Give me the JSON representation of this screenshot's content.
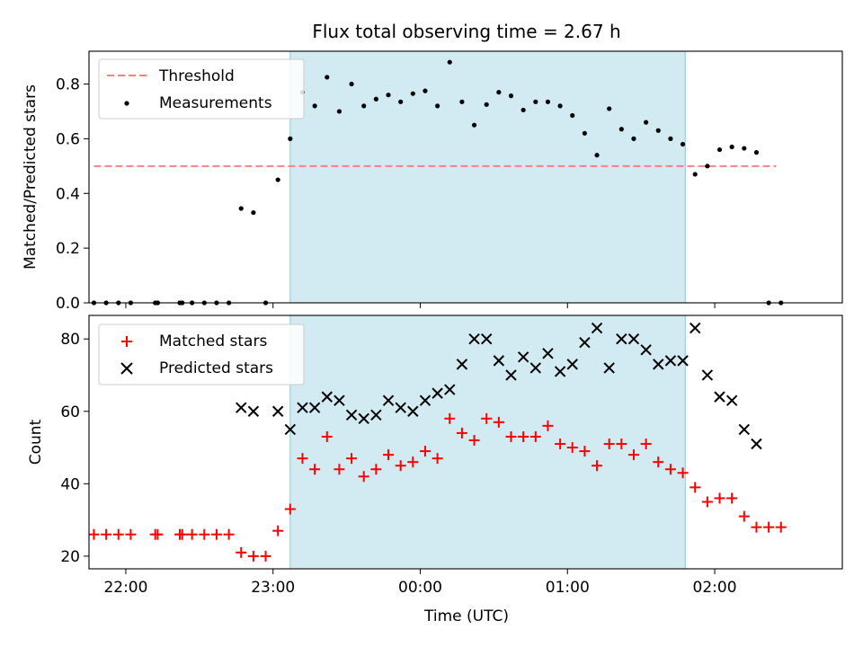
{
  "figure": {
    "title": "Flux total observing time = 2.67 h",
    "xlabel": "Time (UTC)",
    "x_ticks": [
      "22:00",
      "23:00",
      "00:00",
      "01:00",
      "02:00"
    ]
  },
  "chart_data": [
    {
      "type": "scatter",
      "title": "Flux total observing time = 2.67 h",
      "ylabel": "Matched/Predicted stars",
      "xlabel": "",
      "xlim": [
        "21:45",
        "02:52"
      ],
      "ylim": [
        0,
        0.92
      ],
      "y_ticks": [
        "0.0",
        "0.2",
        "0.4",
        "0.6",
        "0.8"
      ],
      "legend": {
        "placement": "top-left",
        "entries": [
          "Threshold",
          "Measurements"
        ]
      },
      "shaded_interval": {
        "x": [
          "23:07",
          "01:48"
        ],
        "color": "#add8e6"
      },
      "threshold": {
        "name": "Threshold",
        "value": 0.5,
        "x": [
          "21:47",
          "02:25"
        ],
        "color": "#ff7f7f",
        "style": "dashed"
      },
      "series": [
        {
          "name": "Measurements",
          "color": "#000000",
          "marker": "dot",
          "points": [
            [
              "21:47",
              0
            ],
            [
              "21:52",
              0
            ],
            [
              "21:57",
              0
            ],
            [
              "22:02",
              0
            ],
            [
              "22:12",
              0
            ],
            [
              "22:13",
              0
            ],
            [
              "22:22",
              0
            ],
            [
              "22:23",
              0
            ],
            [
              "22:27",
              0
            ],
            [
              "22:32",
              0
            ],
            [
              "22:37",
              0
            ],
            [
              "22:42",
              0
            ],
            [
              "22:47",
              0.345
            ],
            [
              "22:52",
              0.33
            ],
            [
              "22:57",
              0
            ],
            [
              "23:02",
              0.45
            ],
            [
              "23:07",
              0.6
            ],
            [
              "23:12",
              0.77
            ],
            [
              "23:17",
              0.72
            ],
            [
              "23:22",
              0.825
            ],
            [
              "23:27",
              0.7
            ],
            [
              "23:32",
              0.8
            ],
            [
              "23:37",
              0.72
            ],
            [
              "23:42",
              0.745
            ],
            [
              "23:47",
              0.76
            ],
            [
              "23:52",
              0.735
            ],
            [
              "23:57",
              0.765
            ],
            [
              "00:02",
              0.775
            ],
            [
              "00:07",
              0.72
            ],
            [
              "00:12",
              0.88
            ],
            [
              "00:17",
              0.735
            ],
            [
              "00:22",
              0.65
            ],
            [
              "00:27",
              0.725
            ],
            [
              "00:32",
              0.77
            ],
            [
              "00:37",
              0.757
            ],
            [
              "00:42",
              0.705
            ],
            [
              "00:47",
              0.735
            ],
            [
              "00:52",
              0.735
            ],
            [
              "00:57",
              0.72
            ],
            [
              "01:02",
              0.685
            ],
            [
              "01:07",
              0.62
            ],
            [
              "01:12",
              0.54
            ],
            [
              "01:17",
              0.71
            ],
            [
              "01:22",
              0.635
            ],
            [
              "01:27",
              0.6
            ],
            [
              "01:32",
              0.66
            ],
            [
              "01:37",
              0.63
            ],
            [
              "01:42",
              0.6
            ],
            [
              "01:47",
              0.58
            ],
            [
              "01:52",
              0.47
            ],
            [
              "01:57",
              0.5
            ],
            [
              "02:02",
              0.56
            ],
            [
              "02:07",
              0.57
            ],
            [
              "02:12",
              0.565
            ],
            [
              "02:17",
              0.55
            ],
            [
              "02:22",
              0
            ],
            [
              "02:27",
              0
            ]
          ]
        }
      ]
    },
    {
      "type": "scatter",
      "ylabel": "Count",
      "xlabel": "Time (UTC)",
      "xlim": [
        "21:45",
        "02:52"
      ],
      "ylim": [
        16.5,
        86.5
      ],
      "y_ticks": [
        "20",
        "40",
        "60",
        "80"
      ],
      "legend": {
        "placement": "top-left",
        "entries": [
          "Matched stars",
          "Predicted stars"
        ]
      },
      "shaded_interval": {
        "x": [
          "23:07",
          "01:48"
        ],
        "color": "#add8e6"
      },
      "series": [
        {
          "name": "Matched stars",
          "color": "#ff0000",
          "marker": "plus",
          "points": [
            [
              "21:47",
              26
            ],
            [
              "21:52",
              26
            ],
            [
              "21:57",
              26
            ],
            [
              "22:02",
              26
            ],
            [
              "22:12",
              26
            ],
            [
              "22:13",
              26
            ],
            [
              "22:22",
              26
            ],
            [
              "22:23",
              26
            ],
            [
              "22:27",
              26
            ],
            [
              "22:32",
              26
            ],
            [
              "22:37",
              26
            ],
            [
              "22:42",
              26
            ],
            [
              "22:47",
              21
            ],
            [
              "22:52",
              20
            ],
            [
              "22:57",
              20
            ],
            [
              "23:02",
              27
            ],
            [
              "23:07",
              33
            ],
            [
              "23:12",
              47
            ],
            [
              "23:17",
              44
            ],
            [
              "23:22",
              53
            ],
            [
              "23:27",
              44
            ],
            [
              "23:32",
              47
            ],
            [
              "23:37",
              42
            ],
            [
              "23:42",
              44
            ],
            [
              "23:47",
              48
            ],
            [
              "23:52",
              45
            ],
            [
              "23:57",
              46
            ],
            [
              "00:02",
              49
            ],
            [
              "00:07",
              47
            ],
            [
              "00:12",
              58
            ],
            [
              "00:17",
              54
            ],
            [
              "00:22",
              52
            ],
            [
              "00:27",
              58
            ],
            [
              "00:32",
              57
            ],
            [
              "00:37",
              53
            ],
            [
              "00:42",
              53
            ],
            [
              "00:47",
              53
            ],
            [
              "00:52",
              56
            ],
            [
              "00:57",
              51
            ],
            [
              "01:02",
              50
            ],
            [
              "01:07",
              49
            ],
            [
              "01:12",
              45
            ],
            [
              "01:17",
              51
            ],
            [
              "01:22",
              51
            ],
            [
              "01:27",
              48
            ],
            [
              "01:32",
              51
            ],
            [
              "01:37",
              46
            ],
            [
              "01:42",
              44
            ],
            [
              "01:47",
              43
            ],
            [
              "01:52",
              39
            ],
            [
              "01:57",
              35
            ],
            [
              "02:02",
              36
            ],
            [
              "02:07",
              36
            ],
            [
              "02:12",
              31
            ],
            [
              "02:17",
              28
            ],
            [
              "02:22",
              28
            ],
            [
              "02:27",
              28
            ]
          ]
        },
        {
          "name": "Predicted stars",
          "color": "#000000",
          "marker": "x",
          "points": [
            [
              "22:47",
              61
            ],
            [
              "22:52",
              60
            ],
            [
              "23:02",
              60
            ],
            [
              "23:07",
              55
            ],
            [
              "23:12",
              61
            ],
            [
              "23:17",
              61
            ],
            [
              "23:22",
              64
            ],
            [
              "23:27",
              63
            ],
            [
              "23:32",
              59
            ],
            [
              "23:37",
              58
            ],
            [
              "23:42",
              59
            ],
            [
              "23:47",
              63
            ],
            [
              "23:52",
              61
            ],
            [
              "23:57",
              60
            ],
            [
              "00:02",
              63
            ],
            [
              "00:07",
              65
            ],
            [
              "00:12",
              66
            ],
            [
              "00:17",
              73
            ],
            [
              "00:22",
              80
            ],
            [
              "00:27",
              80
            ],
            [
              "00:32",
              74
            ],
            [
              "00:37",
              70
            ],
            [
              "00:42",
              75
            ],
            [
              "00:47",
              72
            ],
            [
              "00:52",
              76
            ],
            [
              "00:57",
              71
            ],
            [
              "01:02",
              73
            ],
            [
              "01:07",
              79
            ],
            [
              "01:12",
              83
            ],
            [
              "01:17",
              72
            ],
            [
              "01:22",
              80
            ],
            [
              "01:27",
              80
            ],
            [
              "01:32",
              77
            ],
            [
              "01:37",
              73
            ],
            [
              "01:42",
              74
            ],
            [
              "01:47",
              74
            ],
            [
              "01:52",
              83
            ],
            [
              "01:57",
              70
            ],
            [
              "02:02",
              64
            ],
            [
              "02:07",
              63
            ],
            [
              "02:12",
              55
            ],
            [
              "02:17",
              51
            ]
          ]
        }
      ]
    }
  ]
}
